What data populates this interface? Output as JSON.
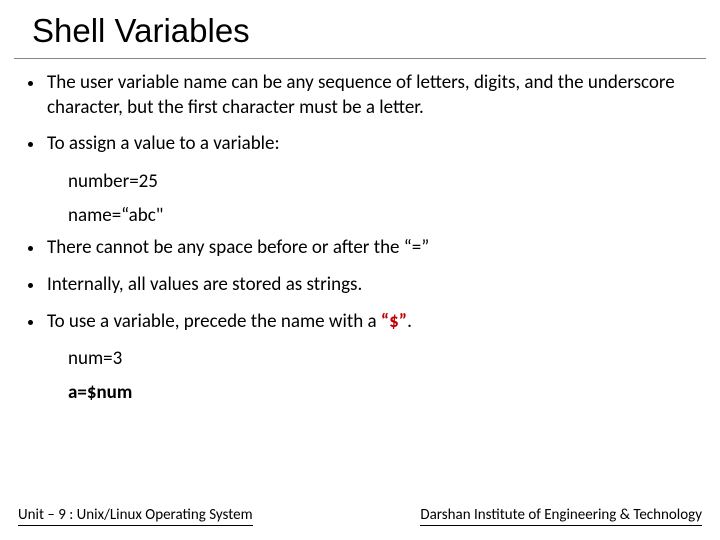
{
  "title": "Shell Variables",
  "bullets": [
    {
      "text": "The user variable name can be any sequence of letters, digits, and the underscore character, but the first character must be a letter.",
      "subs": []
    },
    {
      "text": "To assign a value to a variable:",
      "subs": [
        {
          "text": "number=25",
          "bold": false
        },
        {
          "text": "name=“abc\"",
          "bold": false
        }
      ]
    },
    {
      "text": "There cannot be any space before or after the “=”",
      "subs": []
    },
    {
      "text": "Internally, all values are stored as strings.",
      "subs": []
    },
    {
      "text_pre": "To use a variable, precede the name with a ",
      "highlight": "“$”",
      "text_post": ".",
      "subs": [
        {
          "text": "num=3",
          "bold": false
        },
        {
          "text": "a=$num",
          "bold": true
        }
      ]
    }
  ],
  "footer": {
    "left": "Unit – 9  : Unix/Linux Operating System",
    "right": "Darshan Institute of Engineering & Technology"
  },
  "colors": {
    "highlight": "#c00000",
    "text": "#000000",
    "background": "#ffffff",
    "rule": "#888888"
  }
}
